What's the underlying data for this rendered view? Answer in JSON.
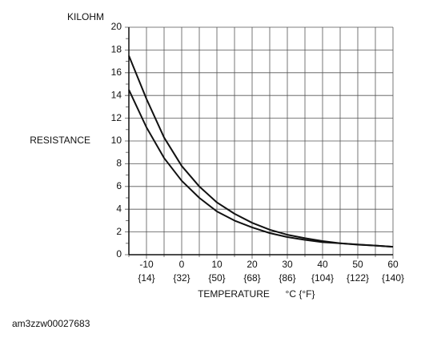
{
  "chart_data": {
    "type": "line",
    "y_unit": "KILOHM",
    "ylabel": "RESISTANCE",
    "xlabel": "TEMPERATURE",
    "x_unit": "°C {°F}",
    "x": [
      -15,
      -10,
      -5,
      0,
      5,
      10,
      15,
      20,
      25,
      30,
      35,
      40,
      45,
      50,
      55,
      60
    ],
    "series": [
      {
        "color": "#111111",
        "values": [
          17.5,
          13.7,
          10.3,
          7.8,
          6.0,
          4.6,
          3.6,
          2.8,
          2.2,
          1.75,
          1.45,
          1.2,
          1.0,
          0.9,
          0.8,
          0.7
        ]
      },
      {
        "color": "#111111",
        "values": [
          14.5,
          11.2,
          8.5,
          6.5,
          5.0,
          3.8,
          3.0,
          2.4,
          1.9,
          1.55,
          1.3,
          1.1,
          1.0,
          0.88,
          0.8,
          0.7
        ]
      }
    ],
    "xlim": [
      -15,
      60
    ],
    "ylim": [
      0,
      20
    ],
    "xticks": [
      -10,
      0,
      10,
      20,
      30,
      40,
      50,
      60
    ],
    "xtick_sublabels": [
      "{14}",
      "{32}",
      "{50}",
      "{68}",
      "{86}",
      "{104}",
      "{122}",
      "{140}"
    ],
    "x_minor_ticks": [
      -15,
      -5,
      5,
      15,
      25,
      35,
      45,
      55
    ],
    "yticks": [
      0,
      2,
      4,
      6,
      8,
      10,
      12,
      14,
      16,
      18,
      20
    ],
    "y_minor_ticks": [
      1,
      3,
      5,
      7,
      9,
      11,
      13,
      15,
      17,
      19
    ],
    "grid": true
  },
  "caption": "am3zzw00027683"
}
